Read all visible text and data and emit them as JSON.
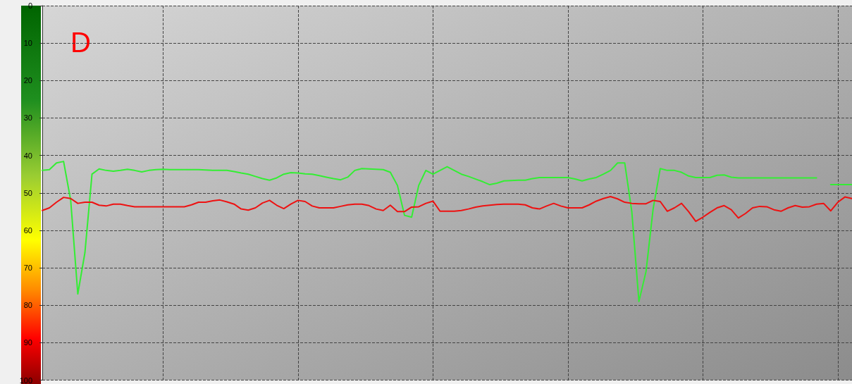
{
  "chart_data": {
    "type": "line",
    "categories": [
      null,
      null,
      null,
      null,
      null,
      null,
      null,
      null,
      null,
      null,
      null,
      null,
      null,
      null,
      null,
      null,
      null,
      null,
      null,
      null,
      null,
      null,
      null,
      null,
      null,
      null,
      null,
      null,
      null,
      null,
      null,
      null,
      null,
      null,
      null,
      null,
      null,
      null,
      null,
      null,
      null,
      null,
      null,
      null,
      null,
      null,
      null,
      null,
      null,
      null,
      null,
      null,
      null,
      null,
      null,
      null,
      null,
      null,
      null,
      null,
      null,
      null,
      null,
      null,
      null,
      null,
      null,
      null,
      null,
      null,
      null,
      null,
      null,
      null,
      null,
      null,
      null,
      null,
      null,
      null,
      null,
      null,
      null,
      null,
      null,
      null,
      null,
      null,
      null,
      null,
      null,
      null,
      null,
      null,
      null,
      null,
      null,
      null,
      null,
      null,
      null,
      null,
      null,
      null,
      null,
      null,
      null,
      null,
      null,
      null,
      null,
      null,
      null,
      null,
      null
    ],
    "series": [
      {
        "color": "#33ee33",
        "values": [
          44,
          43.8,
          42,
          41.6,
          52,
          77,
          66,
          45,
          43.6,
          44,
          44.2,
          44,
          43.7,
          44,
          44.4,
          44,
          43.8,
          43.7,
          43.8,
          43.8,
          43.8,
          43.8,
          43.8,
          43.9,
          44,
          44,
          44,
          44.3,
          44.7,
          45,
          45.6,
          46.2,
          46.6,
          46,
          45,
          44.6,
          44.7,
          44.9,
          45,
          45.4,
          45.8,
          46.2,
          46.5,
          45.8,
          44,
          43.5,
          43.6,
          43.7,
          43.8,
          44.5,
          48,
          56,
          56.5,
          48,
          44,
          45,
          44,
          43,
          44,
          45,
          45.6,
          46.3,
          47,
          47.8,
          47.4,
          46.8,
          46.7,
          46.6,
          46.6,
          46.2,
          45.9,
          45.9,
          45.9,
          45.9,
          45.9,
          46.3,
          46.8,
          46.3,
          45.9,
          45,
          44,
          42,
          42,
          55,
          79,
          71,
          54.3,
          43.5,
          44,
          44,
          44.5,
          45.5,
          45.9,
          45.9,
          45.9,
          45.3,
          45.2,
          45.8,
          46,
          46,
          46,
          46,
          46,
          46,
          46,
          46,
          46,
          46,
          46,
          46,
          null,
          47.8,
          47.8,
          47.8,
          47.8
        ]
      },
      {
        "color": "#ee1111",
        "values": [
          54.7,
          54,
          52.5,
          51.2,
          51.5,
          52.8,
          52.5,
          52.5,
          53.3,
          53.5,
          53,
          53,
          53.4,
          53.7,
          53.7,
          53.7,
          53.7,
          53.7,
          53.7,
          53.7,
          53.7,
          53.2,
          52.5,
          52.5,
          52.1,
          51.9,
          52.4,
          53,
          54.3,
          54.6,
          54,
          52.7,
          52,
          53.3,
          54.2,
          53,
          52,
          52.3,
          53.5,
          54,
          54,
          54,
          53.6,
          53.2,
          53,
          53,
          53.4,
          54.3,
          54.7,
          53.3,
          55,
          55,
          53.8,
          53.7,
          52.8,
          52.2,
          54.9,
          54.9,
          54.9,
          54.7,
          54.3,
          53.8,
          53.5,
          53.3,
          53.1,
          53,
          53,
          53,
          53.2,
          54,
          54.3,
          53.5,
          52.8,
          53.5,
          54,
          54,
          54,
          53.2,
          52.2,
          51.5,
          51,
          51.6,
          52.5,
          52.8,
          52.9,
          52.9,
          52,
          52.3,
          54.9,
          54,
          52.8,
          55,
          57.6,
          56.5,
          55.2,
          54,
          53.4,
          54.5,
          56.7,
          55.5,
          54,
          53.6,
          53.7,
          54.5,
          54.9,
          54,
          53.4,
          53.8,
          53.7,
          53,
          52.8,
          54.8,
          52.5,
          51.1,
          51.5
        ]
      }
    ],
    "ylim": [
      100,
      0
    ],
    "yticks": [
      0,
      10,
      20,
      30,
      40,
      50,
      60,
      70,
      80,
      90,
      100
    ],
    "grid": true,
    "tick_labels": "y",
    "marker": "none",
    "line_style": "solid",
    "annotations": [
      "D"
    ]
  }
}
